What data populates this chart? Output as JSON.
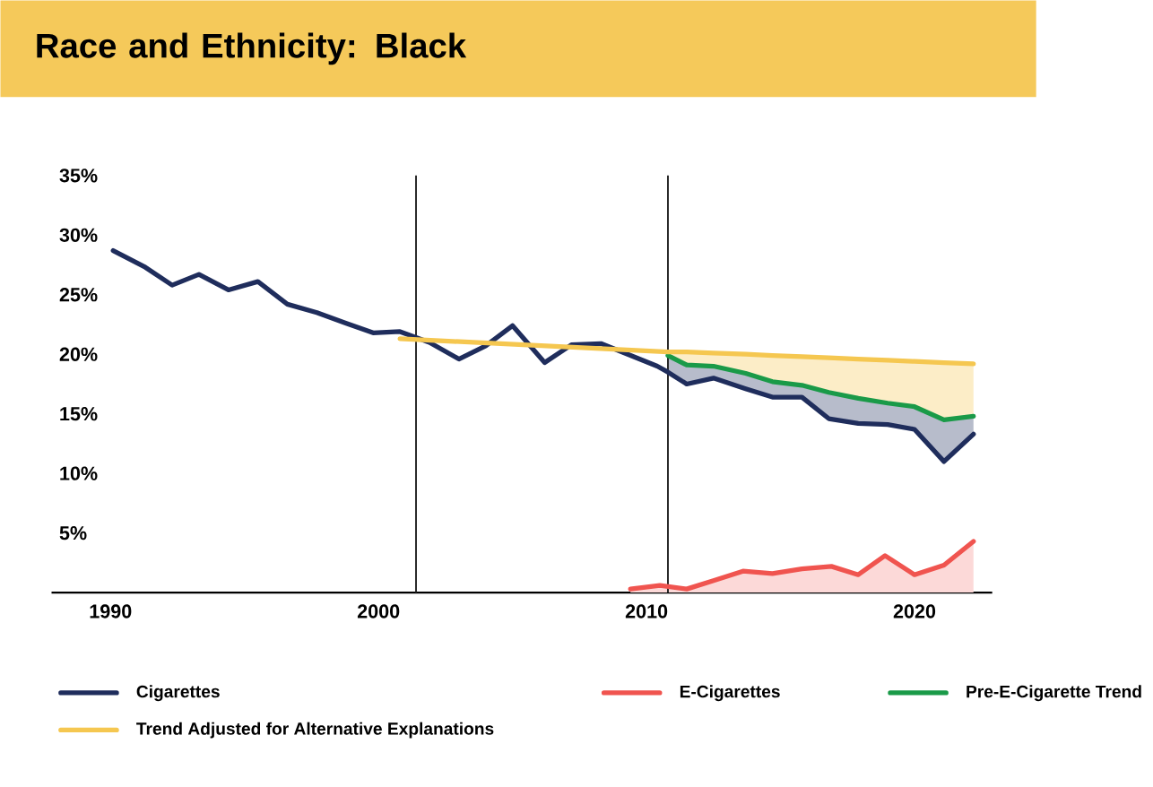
{
  "chart_data": {
    "type": "line",
    "title": "Race and Ethnicity: Black",
    "xlim": [
      1987.8,
      2022.9
    ],
    "xticks": [
      1990,
      2000,
      2010,
      2020
    ],
    "ylim": [
      0,
      35
    ],
    "yticks": [
      {
        "value": 5,
        "label": "5%"
      },
      {
        "value": 10,
        "label": "10%"
      },
      {
        "value": 15,
        "label": "15%"
      },
      {
        "value": 20,
        "label": "20%"
      },
      {
        "value": 25,
        "label": "25%"
      },
      {
        "value": 30,
        "label": "30%"
      },
      {
        "value": 35,
        "label": "35%"
      }
    ],
    "legend": "bottom",
    "ref_lines": [
      {
        "axis": "x",
        "value": 2001.4,
        "color": "#222222"
      },
      {
        "axis": "x",
        "value": 2010.8,
        "color": "#222222"
      }
    ],
    "series": [
      {
        "name": "Cigarettes",
        "color": "#1f2d5c",
        "x": [
          1990.1,
          1991.3,
          1992.3,
          1993.3,
          1994.4,
          1995.5,
          1996.6,
          1997.7,
          1998.8,
          1999.8,
          2000.8,
          2001.9,
          2003.0,
          2004.0,
          2005.0,
          2006.2,
          2007.2,
          2008.3,
          2009.3,
          2010.4,
          2010.8,
          2011.5,
          2012.5,
          2013.7,
          2014.7,
          2015.8,
          2016.8,
          2017.9,
          2019.0,
          2020.0,
          2021.1,
          2022.2
        ],
        "values": [
          28.7,
          27.3,
          25.8,
          26.7,
          25.4,
          26.1,
          24.2,
          23.5,
          22.6,
          21.8,
          21.9,
          21.0,
          19.6,
          20.7,
          22.4,
          19.3,
          20.8,
          20.9,
          20.0,
          19.0,
          18.5,
          17.5,
          18.0,
          17.1,
          16.4,
          16.4,
          14.6,
          14.2,
          14.1,
          13.7,
          11.0,
          13.3
        ],
        "lower": [
          null,
          null,
          null,
          null,
          null,
          null,
          null,
          null,
          null,
          null,
          null,
          null,
          null,
          null,
          null,
          null,
          null,
          null,
          null,
          null,
          18.5,
          17.5,
          18.0,
          17.1,
          16.4,
          16.4,
          14.6,
          14.2,
          14.1,
          13.7,
          11.0,
          13.3
        ],
        "upper": [
          null,
          null,
          null,
          null,
          null,
          null,
          null,
          null,
          null,
          null,
          null,
          null,
          null,
          null,
          null,
          null,
          null,
          null,
          null,
          null,
          19.9,
          19.1,
          19.0,
          18.4,
          17.7,
          17.4,
          16.8,
          16.3,
          15.9,
          15.6,
          14.5,
          14.8
        ]
      },
      {
        "name": "E-Cigarettes",
        "type": "area",
        "color": "#f0544f",
        "x": [
          2009.4,
          2010.5,
          2011.5,
          2012.5,
          2013.6,
          2014.7,
          2015.8,
          2016.9,
          2017.9,
          2018.9,
          2020.0,
          2021.1,
          2022.2
        ],
        "values": [
          0.3,
          0.6,
          0.3,
          1.0,
          1.8,
          1.6,
          2.0,
          2.2,
          1.5,
          3.1,
          1.5,
          2.3,
          4.3
        ]
      },
      {
        "name": "Pre-E-Cigarette Trend",
        "color": "#1a9a48",
        "x": [
          2010.8,
          2011.5,
          2012.5,
          2013.7,
          2014.7,
          2015.8,
          2016.8,
          2017.9,
          2019.0,
          2020.0,
          2021.1,
          2022.2
        ],
        "values": [
          19.9,
          19.1,
          19.0,
          18.4,
          17.7,
          17.4,
          16.8,
          16.3,
          15.9,
          15.6,
          14.5,
          14.8
        ]
      },
      {
        "name": "Trend Adjusted for Alternative Explanations",
        "color": "#f5c750",
        "x": [
          2000.8,
          2010.8,
          2011.5,
          2012.5,
          2013.7,
          2014.7,
          2015.8,
          2016.8,
          2017.9,
          2019.0,
          2020.0,
          2021.1,
          2022.2
        ],
        "values": [
          21.3,
          20.2,
          20.2,
          20.1,
          20.0,
          19.9,
          19.8,
          19.7,
          19.6,
          19.5,
          19.4,
          19.3,
          19.2
        ],
        "lower": [
          null,
          19.9,
          19.1,
          19.0,
          18.4,
          17.7,
          17.4,
          16.8,
          16.3,
          15.9,
          15.6,
          14.5,
          14.8
        ],
        "upper": [
          null,
          20.2,
          20.2,
          20.1,
          20.0,
          19.9,
          19.8,
          19.7,
          19.6,
          19.5,
          19.4,
          19.3,
          19.2
        ]
      }
    ]
  }
}
